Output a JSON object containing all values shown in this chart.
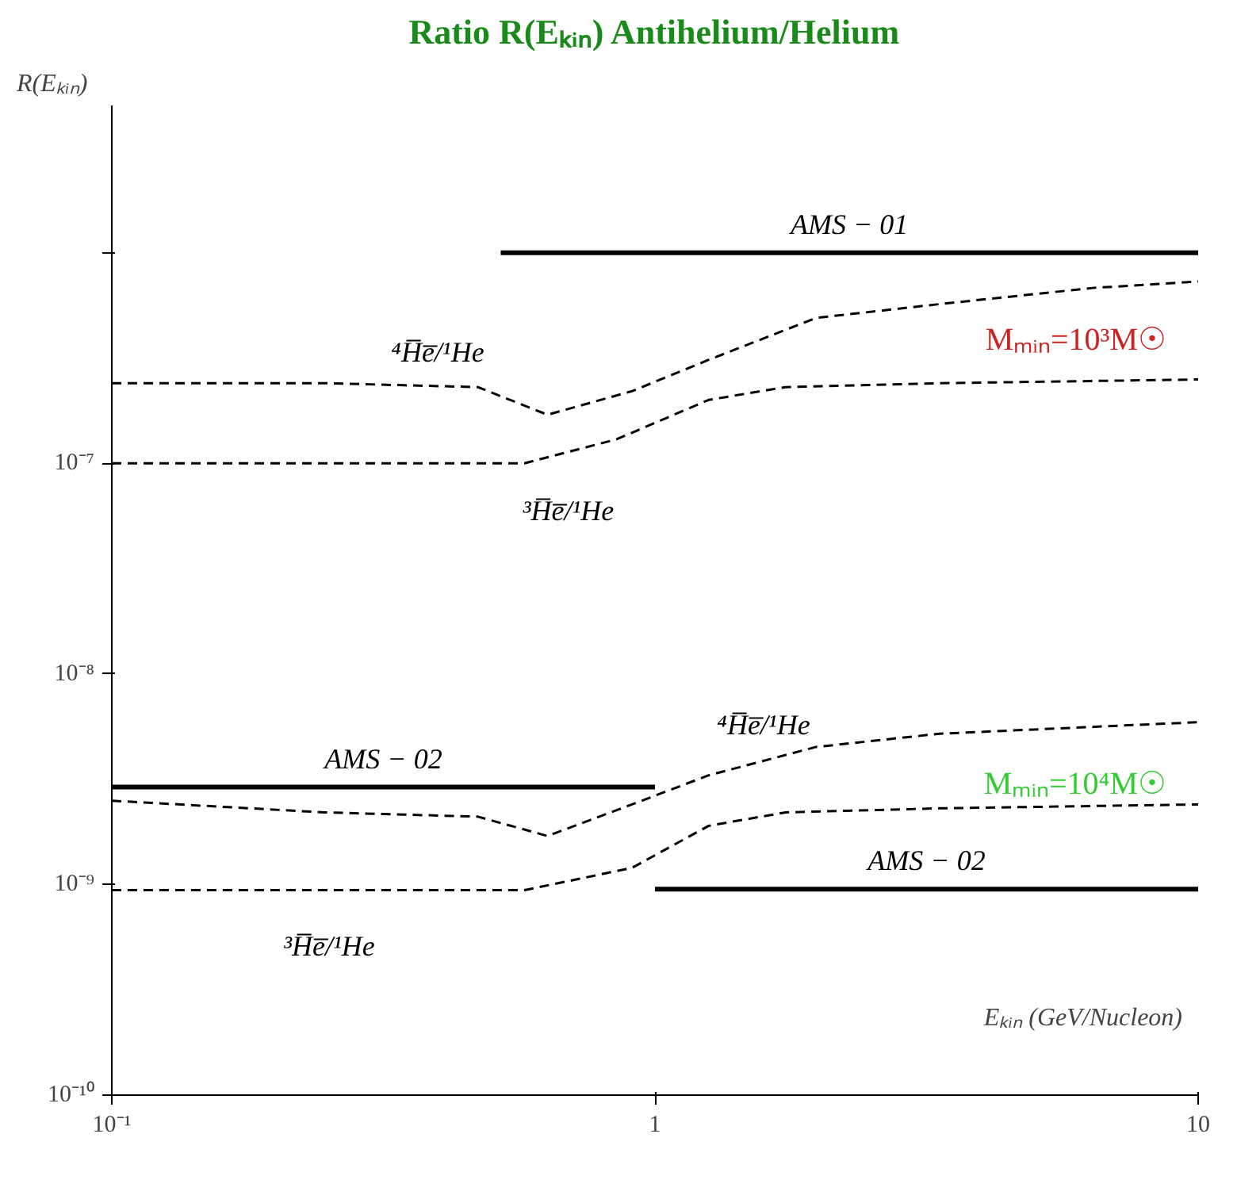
{
  "chart_data": {
    "type": "line",
    "title": "Ratio R(Eₖᵢₙ) Antihelium/Helium",
    "ylabel": "R(Eₖᵢₙ)",
    "xlabel": "Eₖᵢₙ (GeV/Nucleon)",
    "log": "xy",
    "grid": false,
    "line_style": "dashed",
    "marker": "none",
    "xlim": [
      0.1,
      10
    ],
    "xticks": [
      {
        "value": 0.1,
        "label": "10⁻¹"
      },
      1,
      10
    ],
    "ylim": [
      1e-10,
      5e-06
    ],
    "yticks": [
      {
        "value": 1e-10,
        "label": "10⁻¹⁰"
      },
      {
        "value": 1e-09,
        "label": "10⁻⁹"
      },
      {
        "value": 1e-08,
        "label": "10⁻⁸"
      },
      {
        "value": 1e-07,
        "label": "10⁻⁷"
      },
      {
        "value": 1e-06,
        "label": null
      }
    ],
    "series": [
      {
        "name": "⁴H̅e̅/¹He",
        "color": "#000000",
        "x": [
          0.1,
          0.246,
          0.472,
          0.634,
          0.907,
          1.256,
          1.98,
          3.34,
          6.4,
          10
        ],
        "values": [
          2.4e-07,
          2.4e-07,
          2.3e-07,
          1.7e-07,
          2.2e-07,
          3.1e-07,
          4.9e-07,
          5.7e-07,
          6.8e-07,
          7.3e-07
        ]
      },
      {
        "name": "³H̅e̅/¹He",
        "color": "#000000",
        "x": [
          0.1,
          0.575,
          0.85,
          1.256,
          1.74,
          3.34,
          10
        ],
        "values": [
          1e-07,
          1e-07,
          1.3e-07,
          2e-07,
          2.3e-07,
          2.4e-07,
          2.5e-07
        ]
      },
      {
        "name": "⁴H̅e̅/¹He",
        "color": "#000000",
        "x": [
          0.1,
          0.246,
          0.472,
          0.634,
          0.907,
          1.256,
          1.98,
          3.34,
          10
        ],
        "values": [
          2.5e-09,
          2.2e-09,
          2.1e-09,
          1.7e-09,
          2.4e-09,
          3.3e-09,
          4.5e-09,
          5.2e-09,
          5.9e-09
        ]
      },
      {
        "name": "³H̅e̅/¹He",
        "color": "#000000",
        "x": [
          0.1,
          0.575,
          0.907,
          1.256,
          1.74,
          3.34,
          10
        ],
        "values": [
          9.4e-10,
          9.4e-10,
          1.2e-09,
          1.9e-09,
          2.2e-09,
          2.3e-09,
          2.4e-09
        ]
      },
      {
        "name": "AMS − 01",
        "line_style": "solid",
        "color": "#000000",
        "x": [
          0.52,
          10
        ],
        "values": [
          1e-06,
          1e-06
        ]
      },
      {
        "name": "AMS − 02",
        "line_style": "solid",
        "color": "#000000",
        "x": [
          0.1,
          1
        ],
        "values": [
          2.9e-09,
          2.9e-09
        ]
      },
      {
        "name": "AMS − 02",
        "line_style": "solid",
        "color": "#000000",
        "x": [
          1,
          10
        ],
        "values": [
          9.5e-10,
          9.5e-10
        ]
      }
    ],
    "annotations": [
      "Mₘᵢₙ=10³M☉",
      "Mₘᵢₙ=10⁴M☉"
    ]
  }
}
